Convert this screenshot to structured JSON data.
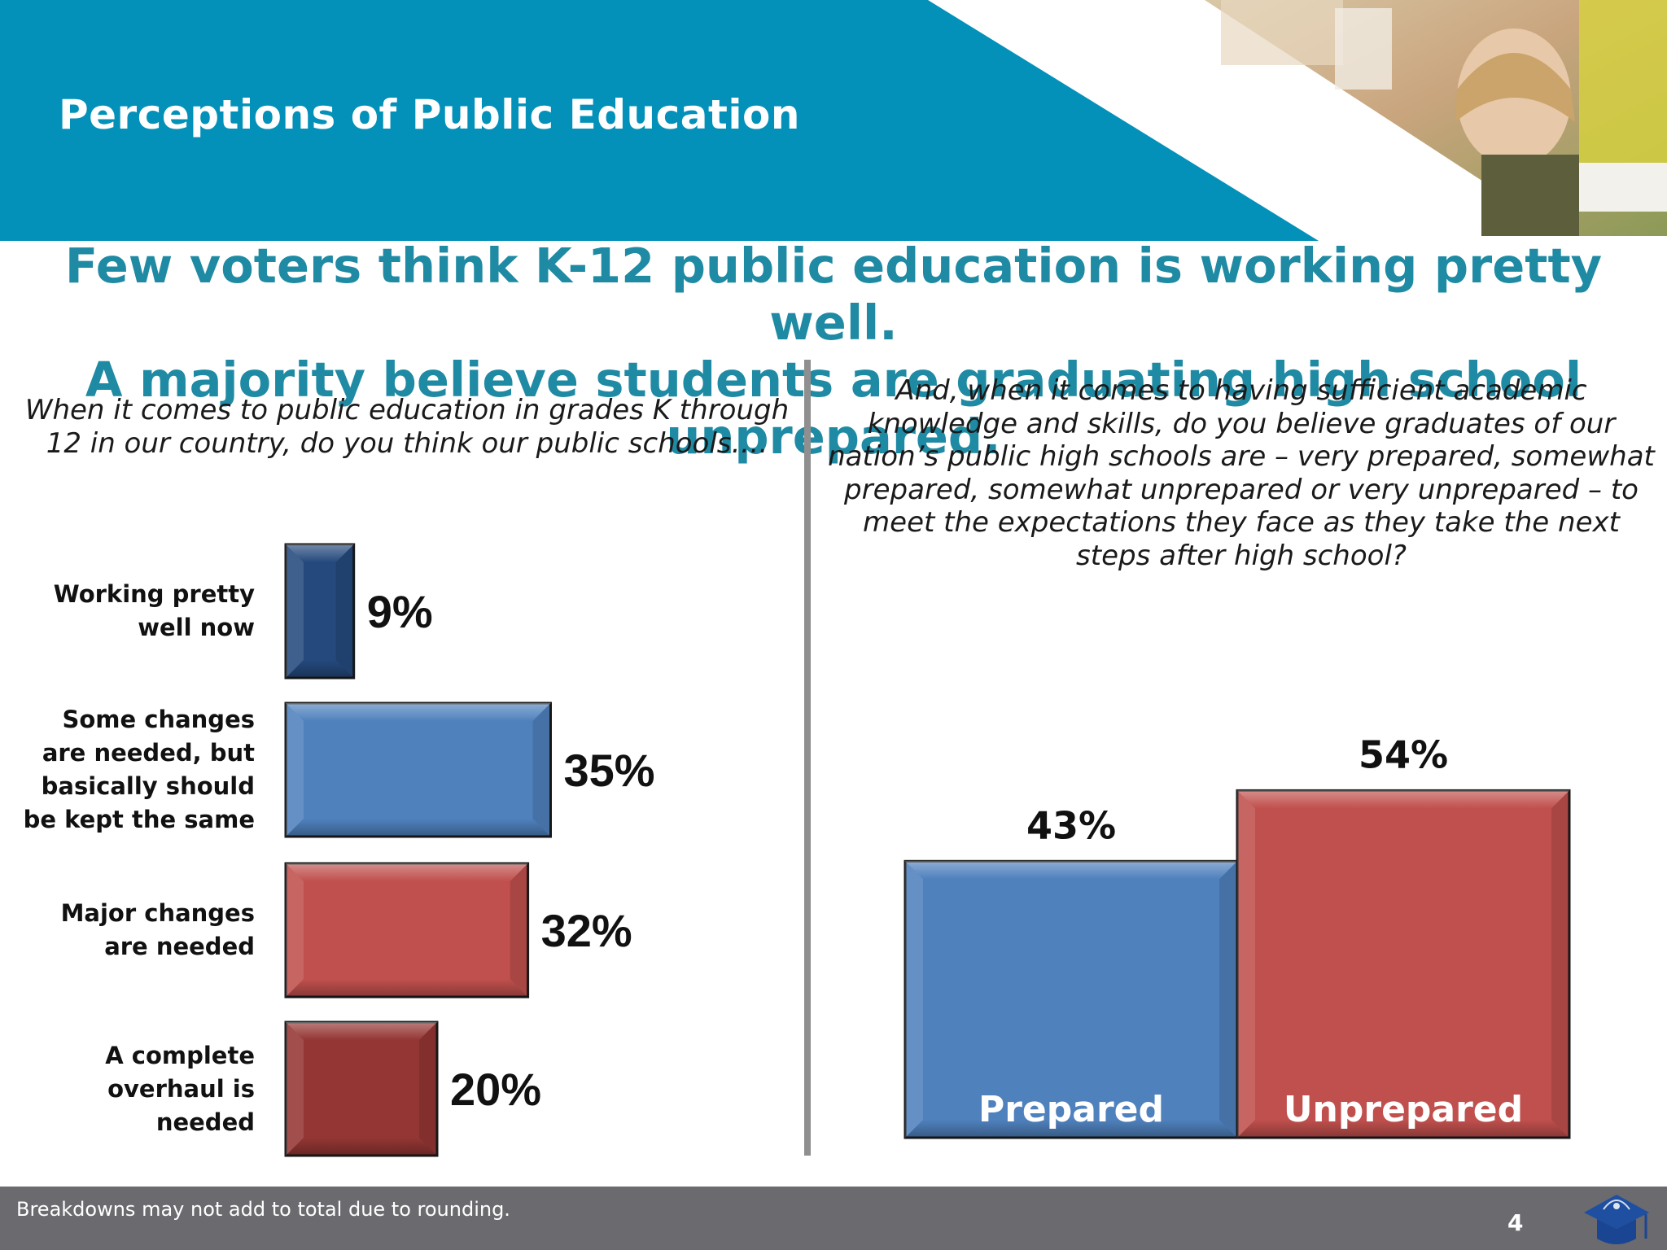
{
  "header": {
    "title": "Perceptions of Public Education"
  },
  "headline": {
    "line1": "Few voters think K-12 public education is working pretty well.",
    "line2": "A majority believe students are graduating high school unprepared."
  },
  "colors": {
    "teal_band": "#0391b9",
    "headline": "#1f8aa3",
    "dark_blue": "#25497d",
    "blue": "#4f81bd",
    "red": "#c0504d",
    "dark_red": "#943634",
    "footer": "#6b6a6f"
  },
  "chart_data": [
    {
      "type": "bar",
      "orientation": "horizontal",
      "question": "When it comes to public education in grades K through 12 in our country, do you think our public schools….",
      "categories": [
        "Working pretty well now",
        "Some changes are needed, but basically should be kept the same",
        "Major changes are needed",
        "A complete overhaul is needed"
      ],
      "category_lines": [
        [
          "Working pretty",
          "well now"
        ],
        [
          "Some changes",
          "are needed, but",
          "basically should",
          "be kept the same"
        ],
        [
          "Major changes",
          "are needed"
        ],
        [
          "A complete",
          "overhaul is",
          "needed"
        ]
      ],
      "values": [
        9,
        35,
        32,
        20
      ],
      "data_labels": [
        "9%",
        "35%",
        "32%",
        "20%"
      ],
      "bar_colors": [
        "#25497d",
        "#4f81bd",
        "#c0504d",
        "#943634"
      ],
      "unit": "%"
    },
    {
      "type": "bar",
      "orientation": "vertical",
      "question": "And, when it comes to having sufficient academic knowledge and skills, do you believe graduates of our nation’s public high schools are – very prepared, somewhat prepared, somewhat unprepared or very unprepared – to meet the expectations they face as they take the next steps after high school?",
      "categories": [
        "Prepared",
        "Unprepared"
      ],
      "values": [
        43,
        54
      ],
      "data_labels": [
        "43%",
        "54%"
      ],
      "bar_colors": [
        "#4f81bd",
        "#c0504d"
      ],
      "unit": "%"
    }
  ],
  "footer": {
    "note": "Breakdowns may not add to total due to rounding.",
    "page_number": "4",
    "logo_icon": "graduation-cap-logo-icon"
  },
  "photo_icon": "classroom-student-photo-icon"
}
